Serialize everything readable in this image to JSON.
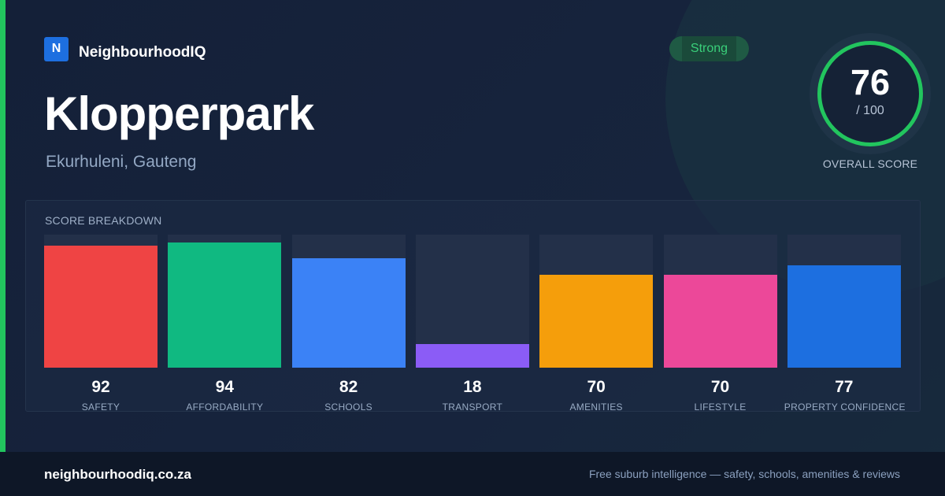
{
  "brand": {
    "logo_letter": "N",
    "name": "NeighbourhoodIQ"
  },
  "suburb": {
    "name": "Klopperpark",
    "region": "Ekurhuleni, Gauteng"
  },
  "rating": {
    "label": "Strong",
    "color": "#22c55e"
  },
  "overall": {
    "score": "76",
    "max": "/ 100",
    "label": "OVERALL SCORE",
    "fraction": 0.76
  },
  "breakdown": {
    "title": "SCORE BREAKDOWN",
    "items": [
      {
        "label": "SAFETY",
        "value": 92,
        "color": "#ef4444"
      },
      {
        "label": "AFFORDABILITY",
        "value": 94,
        "color": "#10b981"
      },
      {
        "label": "SCHOOLS",
        "value": 82,
        "color": "#3b82f6"
      },
      {
        "label": "TRANSPORT",
        "value": 18,
        "color": "#8b5cf6"
      },
      {
        "label": "AMENITIES",
        "value": 70,
        "color": "#f59e0b"
      },
      {
        "label": "LIFESTYLE",
        "value": 70,
        "color": "#ec4899"
      },
      {
        "label": "PROPERTY CONFIDENCE",
        "value": 77,
        "color": "#1d6fe0"
      }
    ]
  },
  "footer": {
    "domain": "neighbourhoodiq.co.za",
    "tagline": "Free suburb intelligence — safety, schools, amenities & reviews"
  },
  "colors": {
    "accent": "#22c55e",
    "brand": "#1d6fe0",
    "background": "#15213a"
  }
}
